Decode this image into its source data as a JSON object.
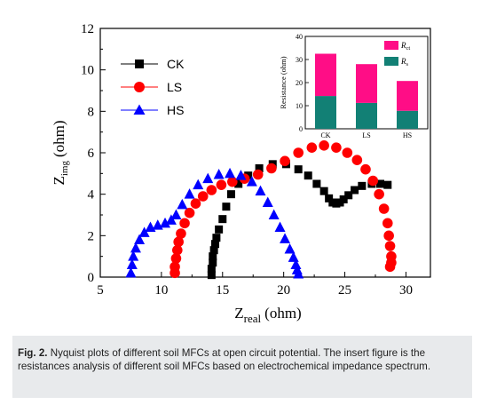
{
  "chart_data": [
    {
      "type": "scatter",
      "xlabel_main": "Z",
      "xlabel_sub": "real",
      "xlabel_unit": "(ohm)",
      "ylabel_main": "Z",
      "ylabel_sub": "img",
      "ylabel_unit": "(ohm)",
      "xlim": [
        5,
        32
      ],
      "ylim": [
        0,
        12
      ],
      "xticks": [
        "5",
        "10",
        "15",
        "20",
        "25",
        "30"
      ],
      "yticks": [
        "0",
        "2",
        "4",
        "6",
        "8",
        "10",
        "12"
      ],
      "legend_position": "top-left",
      "series": [
        {
          "name": "CK",
          "marker": "square",
          "color": "#000000",
          "x": [
            14.1,
            14.1,
            14.2,
            14.2,
            14.3,
            14.4,
            14.5,
            14.7,
            15.0,
            15.3,
            15.7,
            16.3,
            17.1,
            18.0,
            19.1,
            20.2,
            21.2,
            22.0,
            22.7,
            23.3,
            23.7,
            24.0,
            24.3,
            24.6,
            24.9,
            25.3,
            25.8,
            26.4,
            27.2,
            27.9,
            28.5
          ],
          "y": [
            0.1,
            0.4,
            0.7,
            1.0,
            1.3,
            1.6,
            1.9,
            2.3,
            2.8,
            3.4,
            4.0,
            4.5,
            4.9,
            5.25,
            5.45,
            5.45,
            5.2,
            4.9,
            4.5,
            4.15,
            3.8,
            3.6,
            3.55,
            3.6,
            3.75,
            3.95,
            4.2,
            4.4,
            4.5,
            4.5,
            4.45
          ]
        },
        {
          "name": "LS",
          "marker": "circle",
          "color": "#ff0000",
          "x": [
            11.1,
            11.1,
            11.2,
            11.3,
            11.4,
            11.6,
            11.9,
            12.3,
            12.8,
            13.4,
            14.1,
            14.9,
            15.8,
            16.8,
            17.9,
            19.0,
            20.1,
            21.2,
            22.3,
            23.3,
            24.3,
            25.2,
            26.0,
            26.7,
            27.3,
            27.8,
            28.2,
            28.5,
            28.6,
            28.7,
            28.8,
            28.8,
            28.7
          ],
          "y": [
            0.2,
            0.5,
            0.9,
            1.3,
            1.7,
            2.1,
            2.6,
            3.1,
            3.55,
            3.9,
            4.2,
            4.45,
            4.6,
            4.75,
            4.95,
            5.25,
            5.6,
            6.0,
            6.25,
            6.35,
            6.25,
            6.0,
            5.65,
            5.2,
            4.65,
            4.0,
            3.3,
            2.6,
            2.0,
            1.5,
            1.0,
            0.7,
            0.5
          ]
        },
        {
          "name": "HS",
          "marker": "triangle",
          "color": "#0000ff",
          "x": [
            7.5,
            7.6,
            7.7,
            7.9,
            8.2,
            8.6,
            9.1,
            9.7,
            10.3,
            10.8,
            11.2,
            11.7,
            12.3,
            13.0,
            13.8,
            14.7,
            15.6,
            16.5,
            17.4,
            18.1,
            18.7,
            19.2,
            19.7,
            20.1,
            20.5,
            20.8,
            21.0,
            21.1,
            21.2
          ],
          "y": [
            0.2,
            0.6,
            1.0,
            1.4,
            1.8,
            2.15,
            2.4,
            2.5,
            2.6,
            2.75,
            3.0,
            3.5,
            4.0,
            4.45,
            4.75,
            4.95,
            5.0,
            4.9,
            4.6,
            4.15,
            3.6,
            3.0,
            2.4,
            1.85,
            1.35,
            0.95,
            0.6,
            0.35,
            0.15
          ]
        }
      ]
    },
    {
      "type": "bar",
      "stacked": true,
      "ylabel": "Resistance (ohm)",
      "ylim": [
        0,
        40
      ],
      "yticks": [
        "0",
        "10",
        "20",
        "30",
        "40"
      ],
      "categories": [
        "CK",
        "LS",
        "HS"
      ],
      "legend_position": "top-right",
      "series": [
        {
          "name": "R",
          "name_sub": "s",
          "color": "#128075",
          "values": [
            14.2,
            11.2,
            7.8
          ]
        },
        {
          "name": "R",
          "name_sub": "ct",
          "color": "#ff0d86",
          "values": [
            18.3,
            16.8,
            12.9
          ]
        }
      ]
    }
  ],
  "caption": {
    "label": "Fig. 2.",
    "text": "Nyquist plots of different soil MFCs at open circuit potential. The insert figure is the resistances analysis of different soil MFCs based on electrochemical impedance spectrum."
  }
}
